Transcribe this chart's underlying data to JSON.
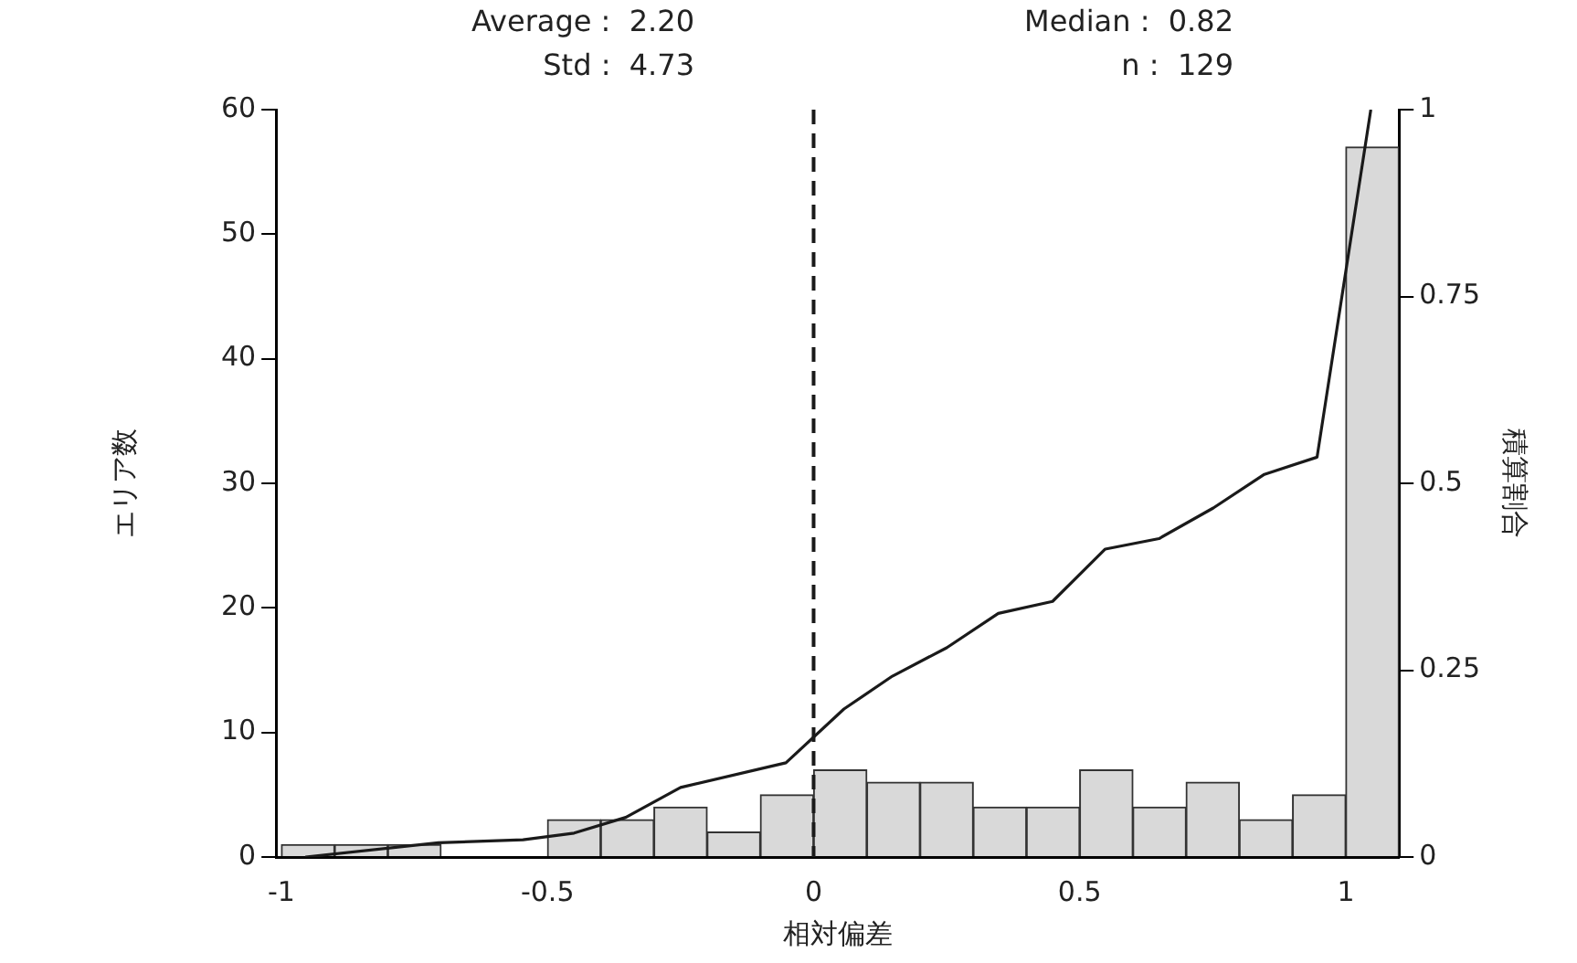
{
  "chart_data": {
    "type": "histogram",
    "xlabel": "相対偏差",
    "ylabel": "エリア数",
    "y2label": "積算割合",
    "annotations": [
      "Average :  2.20",
      "Std :  4.73",
      "Median :  0.82",
      "n :  129"
    ],
    "bins": [
      -1,
      -0.9,
      -0.8,
      -0.7,
      -0.6,
      -0.5,
      -0.4,
      -0.3,
      -0.2,
      -0.1,
      0,
      0.1,
      0.2,
      0.3,
      0.4,
      0.5,
      0.6,
      0.7,
      0.8,
      0.9,
      1.0,
      1.1
    ],
    "values": [
      1,
      1,
      1,
      0,
      0,
      3,
      3,
      4,
      2,
      5,
      7,
      6,
      6,
      4,
      4,
      7,
      4,
      6,
      3,
      5,
      57
    ],
    "color": "#d9d9d9",
    "series": [
      {
        "type": "line",
        "axis": "y2",
        "color": "#1a1a1a",
        "x": [
          -0.955,
          -0.705,
          -0.546,
          -0.45,
          -0.353,
          -0.25,
          -0.052,
          0.057,
          0.148,
          0.25,
          0.347,
          0.449,
          0.548,
          0.649,
          0.751,
          0.847,
          0.946,
          1.047
        ],
        "values": [
          0,
          0.019,
          0.023,
          0.032,
          0.053,
          0.093,
          0.126,
          0.198,
          0.242,
          0.28,
          0.326,
          0.342,
          0.412,
          0.426,
          0.467,
          0.512,
          0.535,
          1.0
        ]
      }
    ],
    "xlim": [
      -1.01,
      1.1
    ],
    "xticks": [
      -1,
      -0.5,
      0,
      0.5,
      1
    ],
    "ylim": [
      0,
      60
    ],
    "yticks": [
      0,
      10,
      20,
      30,
      40,
      50,
      60
    ],
    "y2lim": [
      0,
      1
    ],
    "y2ticks": [
      0,
      0.25,
      0.5,
      0.75,
      1
    ],
    "ref_lines": [
      {
        "axis": "x",
        "value": 0,
        "line_style": "dashed",
        "color": "#1a1a1a"
      }
    ],
    "grid": false,
    "legend": false,
    "marker": "none"
  }
}
